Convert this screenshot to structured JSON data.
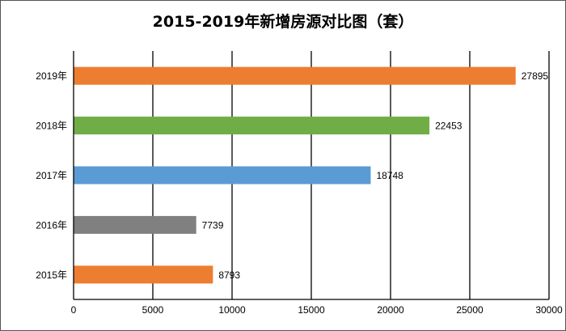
{
  "chart_data": {
    "type": "bar",
    "orientation": "horizontal",
    "title": "2015-2019年新增房源对比图（套）",
    "categories": [
      "2019年",
      "2018年",
      "2017年",
      "2016年",
      "2015年"
    ],
    "values": [
      27895,
      22453,
      18748,
      7739,
      8793
    ],
    "data_labels": [
      "27895",
      "22453",
      "18748",
      "7739",
      "8793"
    ],
    "bar_colors": [
      "#ED7D31",
      "#70AD47",
      "#5B9BD5",
      "#808080",
      "#ED7D31"
    ],
    "xlim": [
      0,
      30000
    ],
    "x_ticks": [
      0,
      5000,
      10000,
      15000,
      20000,
      25000,
      30000
    ],
    "x_tick_labels": [
      "0",
      "5000",
      "10000",
      "15000",
      "20000",
      "25000",
      "30000"
    ],
    "grid": "vertical",
    "xlabel": "",
    "ylabel": "",
    "legend": "none"
  }
}
